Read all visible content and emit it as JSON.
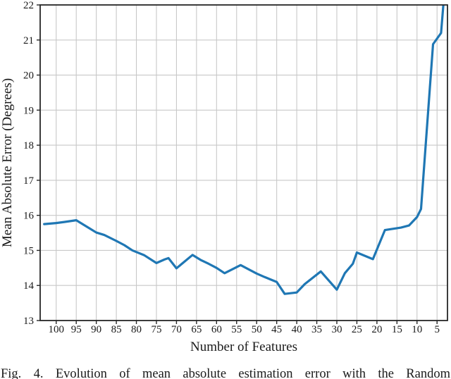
{
  "figure": {
    "caption": "Fig. 4.   Evolution of mean absolute estimation error with the Random"
  },
  "chart_data": {
    "type": "line",
    "title": "",
    "xlabel": "Number of Features",
    "ylabel": "Mean Absolute Error (Degrees)",
    "x_ticks": [
      100,
      95,
      90,
      85,
      80,
      75,
      70,
      65,
      60,
      55,
      50,
      45,
      40,
      35,
      30,
      25,
      20,
      15,
      10,
      5
    ],
    "y_ticks": [
      13,
      14,
      15,
      16,
      17,
      18,
      19,
      20,
      21,
      22
    ],
    "xlim": [
      104,
      2.4
    ],
    "ylim": [
      13,
      22
    ],
    "x_axis_inverted": true,
    "grid": true,
    "legend": "none",
    "colors": {
      "line": "#1f77b4",
      "grid": "#c8c8c8",
      "spine": "#262626",
      "text": "#1a1a1a"
    },
    "series": [
      {
        "name": "Mean Absolute Error",
        "x": [
          103,
          100,
          98,
          95,
          90,
          88,
          85,
          83,
          81,
          78,
          75,
          73,
          72,
          70,
          68,
          66,
          64,
          62,
          60,
          58,
          54,
          50,
          48,
          45,
          43,
          40,
          38,
          34,
          30,
          28,
          26,
          25,
          21,
          18,
          14,
          12,
          10,
          9,
          6,
          4,
          3
        ],
        "y": [
          15.75,
          15.78,
          15.81,
          15.86,
          15.51,
          15.44,
          15.27,
          15.15,
          15.0,
          14.86,
          14.64,
          14.74,
          14.78,
          14.49,
          14.68,
          14.87,
          14.73,
          14.62,
          14.5,
          14.35,
          14.58,
          14.34,
          14.24,
          14.1,
          13.76,
          13.8,
          14.04,
          14.4,
          13.88,
          14.35,
          14.62,
          14.94,
          14.75,
          15.58,
          15.65,
          15.71,
          15.95,
          16.18,
          20.88,
          21.2,
          22.6
        ]
      }
    ]
  }
}
